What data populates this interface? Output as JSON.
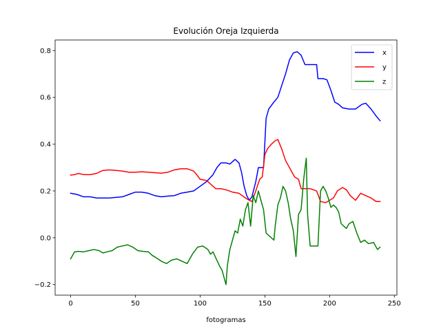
{
  "chart_data": {
    "type": "line",
    "title": "Evolución Oreja Izquierda",
    "xlabel": "fotogramas",
    "ylabel": "",
    "xlim": [
      -12,
      252
    ],
    "ylim": [
      -0.245,
      0.845
    ],
    "xticks": [
      0,
      50,
      100,
      150,
      200,
      250
    ],
    "yticks": [
      -0.2,
      0.0,
      0.2,
      0.4,
      0.6,
      0.8
    ],
    "ytick_labels": [
      "−0.2",
      "0.0",
      "0.2",
      "0.4",
      "0.6",
      "0.8"
    ],
    "grid": false,
    "legend_position": "top-right",
    "series": [
      {
        "name": "x",
        "color": "#0000ff",
        "points": [
          [
            0,
            0.19
          ],
          [
            5,
            0.185
          ],
          [
            10,
            0.175
          ],
          [
            15,
            0.175
          ],
          [
            20,
            0.17
          ],
          [
            30,
            0.17
          ],
          [
            40,
            0.175
          ],
          [
            45,
            0.185
          ],
          [
            50,
            0.195
          ],
          [
            55,
            0.195
          ],
          [
            60,
            0.19
          ],
          [
            65,
            0.18
          ],
          [
            70,
            0.175
          ],
          [
            75,
            0.178
          ],
          [
            80,
            0.18
          ],
          [
            85,
            0.19
          ],
          [
            90,
            0.195
          ],
          [
            95,
            0.2
          ],
          [
            100,
            0.22
          ],
          [
            105,
            0.24
          ],
          [
            110,
            0.27
          ],
          [
            113,
            0.3
          ],
          [
            116,
            0.32
          ],
          [
            120,
            0.32
          ],
          [
            123,
            0.315
          ],
          [
            127,
            0.335
          ],
          [
            130,
            0.32
          ],
          [
            132,
            0.28
          ],
          [
            134,
            0.22
          ],
          [
            136,
            0.18
          ],
          [
            138,
            0.16
          ],
          [
            140,
            0.175
          ],
          [
            143,
            0.24
          ],
          [
            145,
            0.3
          ],
          [
            149,
            0.3
          ],
          [
            151,
            0.51
          ],
          [
            153,
            0.55
          ],
          [
            157,
            0.58
          ],
          [
            160,
            0.6
          ],
          [
            163,
            0.65
          ],
          [
            166,
            0.7
          ],
          [
            169,
            0.76
          ],
          [
            172,
            0.79
          ],
          [
            175,
            0.795
          ],
          [
            178,
            0.78
          ],
          [
            181,
            0.74
          ],
          [
            190,
            0.74
          ],
          [
            191,
            0.68
          ],
          [
            195,
            0.68
          ],
          [
            198,
            0.675
          ],
          [
            201,
            0.63
          ],
          [
            204,
            0.58
          ],
          [
            207,
            0.57
          ],
          [
            210,
            0.555
          ],
          [
            215,
            0.55
          ],
          [
            220,
            0.55
          ],
          [
            225,
            0.57
          ],
          [
            228,
            0.575
          ],
          [
            232,
            0.55
          ],
          [
            236,
            0.52
          ],
          [
            239,
            0.5
          ]
        ]
      },
      {
        "name": "y",
        "color": "#ff0000",
        "points": [
          [
            0,
            0.268
          ],
          [
            3,
            0.27
          ],
          [
            6,
            0.275
          ],
          [
            10,
            0.27
          ],
          [
            15,
            0.27
          ],
          [
            20,
            0.275
          ],
          [
            25,
            0.288
          ],
          [
            30,
            0.29
          ],
          [
            35,
            0.288
          ],
          [
            40,
            0.285
          ],
          [
            45,
            0.28
          ],
          [
            50,
            0.28
          ],
          [
            55,
            0.282
          ],
          [
            60,
            0.28
          ],
          [
            65,
            0.278
          ],
          [
            70,
            0.276
          ],
          [
            75,
            0.28
          ],
          [
            80,
            0.29
          ],
          [
            85,
            0.295
          ],
          [
            90,
            0.295
          ],
          [
            95,
            0.285
          ],
          [
            98,
            0.265
          ],
          [
            100,
            0.25
          ],
          [
            105,
            0.245
          ],
          [
            108,
            0.23
          ],
          [
            112,
            0.21
          ],
          [
            116,
            0.21
          ],
          [
            120,
            0.205
          ],
          [
            125,
            0.195
          ],
          [
            130,
            0.19
          ],
          [
            135,
            0.17
          ],
          [
            138,
            0.16
          ],
          [
            140,
            0.155
          ],
          [
            143,
            0.2
          ],
          [
            146,
            0.25
          ],
          [
            148,
            0.26
          ],
          [
            150,
            0.355
          ],
          [
            152,
            0.38
          ],
          [
            155,
            0.4
          ],
          [
            158,
            0.415
          ],
          [
            160,
            0.42
          ],
          [
            163,
            0.38
          ],
          [
            166,
            0.33
          ],
          [
            170,
            0.29
          ],
          [
            173,
            0.26
          ],
          [
            176,
            0.25
          ],
          [
            178,
            0.21
          ],
          [
            185,
            0.21
          ],
          [
            190,
            0.2
          ],
          [
            193,
            0.155
          ],
          [
            197,
            0.15
          ],
          [
            200,
            0.16
          ],
          [
            203,
            0.17
          ],
          [
            206,
            0.2
          ],
          [
            210,
            0.215
          ],
          [
            213,
            0.205
          ],
          [
            216,
            0.18
          ],
          [
            220,
            0.16
          ],
          [
            224,
            0.19
          ],
          [
            228,
            0.18
          ],
          [
            232,
            0.17
          ],
          [
            236,
            0.155
          ],
          [
            239,
            0.155
          ]
        ]
      },
      {
        "name": "z",
        "color": "#008000",
        "points": [
          [
            0,
            -0.09
          ],
          [
            3,
            -0.06
          ],
          [
            6,
            -0.058
          ],
          [
            10,
            -0.06
          ],
          [
            14,
            -0.055
          ],
          [
            18,
            -0.05
          ],
          [
            22,
            -0.055
          ],
          [
            25,
            -0.065
          ],
          [
            28,
            -0.06
          ],
          [
            32,
            -0.055
          ],
          [
            36,
            -0.04
          ],
          [
            40,
            -0.035
          ],
          [
            44,
            -0.03
          ],
          [
            48,
            -0.04
          ],
          [
            52,
            -0.055
          ],
          [
            56,
            -0.058
          ],
          [
            60,
            -0.06
          ],
          [
            63,
            -0.075
          ],
          [
            66,
            -0.085
          ],
          [
            70,
            -0.1
          ],
          [
            74,
            -0.11
          ],
          [
            78,
            -0.095
          ],
          [
            82,
            -0.09
          ],
          [
            86,
            -0.1
          ],
          [
            90,
            -0.11
          ],
          [
            94,
            -0.07
          ],
          [
            98,
            -0.04
          ],
          [
            102,
            -0.035
          ],
          [
            106,
            -0.05
          ],
          [
            108,
            -0.07
          ],
          [
            110,
            -0.06
          ],
          [
            112,
            -0.085
          ],
          [
            115,
            -0.12
          ],
          [
            117,
            -0.14
          ],
          [
            119,
            -0.18
          ],
          [
            120,
            -0.2
          ],
          [
            121,
            -0.12
          ],
          [
            123,
            -0.05
          ],
          [
            125,
            -0.01
          ],
          [
            127,
            0.03
          ],
          [
            129,
            0.02
          ],
          [
            131,
            0.08
          ],
          [
            133,
            0.05
          ],
          [
            135,
            0.12
          ],
          [
            137,
            0.15
          ],
          [
            139,
            0.05
          ],
          [
            141,
            0.18
          ],
          [
            143,
            0.15
          ],
          [
            145,
            0.2
          ],
          [
            147,
            0.16
          ],
          [
            149,
            0.12
          ],
          [
            151,
            0.02
          ],
          [
            153,
            0.01
          ],
          [
            155,
            0.0
          ],
          [
            157,
            -0.01
          ],
          [
            158,
            0.05
          ],
          [
            160,
            0.14
          ],
          [
            162,
            0.17
          ],
          [
            164,
            0.22
          ],
          [
            166,
            0.2
          ],
          [
            168,
            0.15
          ],
          [
            170,
            0.08
          ],
          [
            172,
            0.03
          ],
          [
            174,
            -0.08
          ],
          [
            176,
            0.1
          ],
          [
            178,
            0.12
          ],
          [
            180,
            0.25
          ],
          [
            182,
            0.34
          ],
          [
            183,
            0.1
          ],
          [
            185,
            -0.035
          ],
          [
            191,
            -0.035
          ],
          [
            193,
            0.2
          ],
          [
            195,
            0.22
          ],
          [
            197,
            0.2
          ],
          [
            199,
            0.17
          ],
          [
            201,
            0.13
          ],
          [
            203,
            0.14
          ],
          [
            205,
            0.13
          ],
          [
            207,
            0.11
          ],
          [
            209,
            0.06
          ],
          [
            211,
            0.05
          ],
          [
            213,
            0.04
          ],
          [
            215,
            0.06
          ],
          [
            218,
            0.07
          ],
          [
            221,
            0.02
          ],
          [
            224,
            -0.02
          ],
          [
            227,
            -0.01
          ],
          [
            230,
            -0.025
          ],
          [
            234,
            -0.02
          ],
          [
            237,
            -0.05
          ],
          [
            239,
            -0.04
          ]
        ]
      }
    ]
  }
}
